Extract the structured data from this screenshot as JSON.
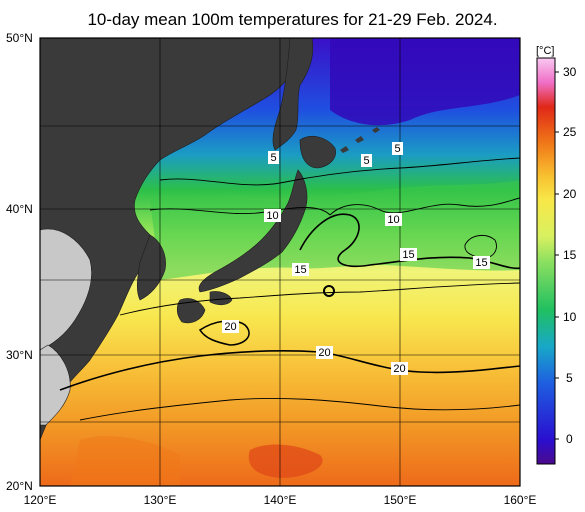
{
  "title": "10-day mean 100m temperatures for 21-29 Feb. 2024.",
  "map": {
    "lon_range": [
      120,
      160
    ],
    "lat_range": [
      20,
      50
    ],
    "x_ticks": [
      "120°E",
      "130°E",
      "140°E",
      "150°E",
      "160°E"
    ],
    "y_ticks": [
      "50°N",
      "40°N",
      "30°N",
      "20°N"
    ],
    "grid": true
  },
  "colorbar": {
    "unit": "[°C]",
    "range": [
      -2,
      32
    ],
    "ticks": [
      "30",
      "25",
      "20",
      "15",
      "10",
      "5",
      "0"
    ],
    "colors": {
      "c_minus2": "#4b0a8c",
      "c_0": "#2a0fd0",
      "c_5": "#1e5fe0",
      "c_8": "#18a8c8",
      "c_11": "#20c060",
      "c_15": "#8ee060",
      "c_17": "#d8f060",
      "c_20": "#f8e848",
      "c_22": "#f8c030",
      "c_25": "#f07818",
      "c_28": "#e02818",
      "c_30": "#f070c8",
      "c_32": "#f8c8f0"
    }
  },
  "contour_labels": [
    {
      "text": "5"
    },
    {
      "text": "5"
    },
    {
      "text": "5"
    },
    {
      "text": "10"
    },
    {
      "text": "10"
    },
    {
      "text": "15"
    },
    {
      "text": "15"
    },
    {
      "text": "15"
    },
    {
      "text": "20"
    },
    {
      "text": "20"
    },
    {
      "text": "20"
    }
  ],
  "colors": {
    "land": "#3a3a3a",
    "land_outline": "#1e1e1e",
    "ice_gray": "#c8c8c8",
    "grid": "#000000"
  }
}
